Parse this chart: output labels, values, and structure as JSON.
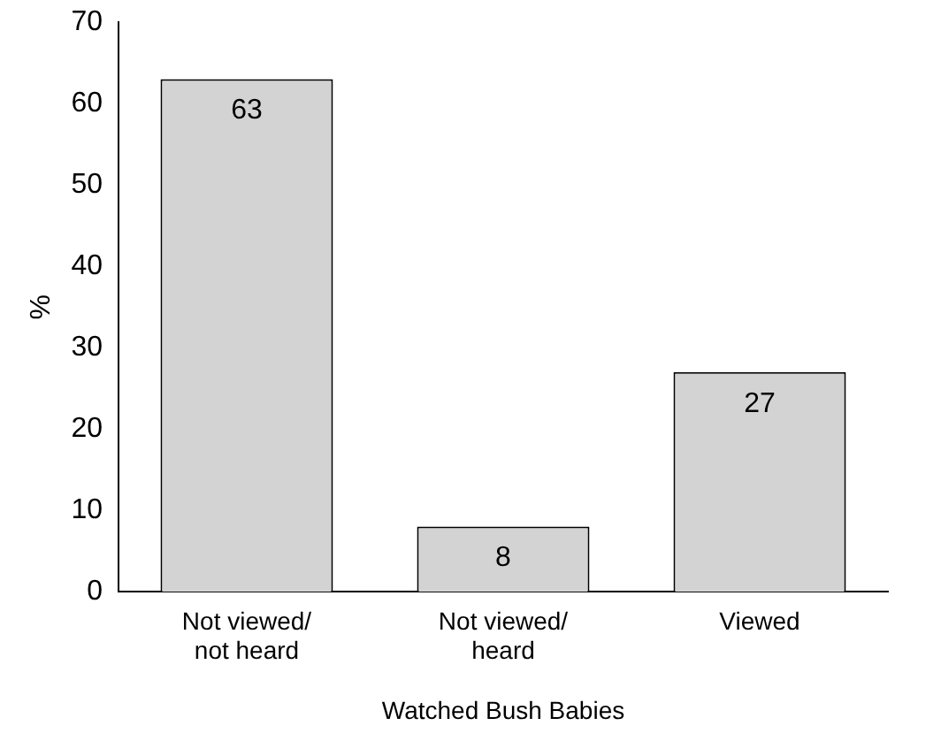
{
  "chart_data": {
    "type": "bar",
    "xlabel": "Watched Bush Babies",
    "ylabel": "%",
    "categories": [
      "Not viewed/not heard",
      "Not viewed/heard",
      "Viewed"
    ],
    "values": [
      63,
      8,
      27
    ],
    "color": "#d3d3d3",
    "ylim": [
      0,
      70
    ],
    "yticks": [
      0,
      10,
      20,
      30,
      40,
      50,
      60,
      70
    ],
    "grid": false,
    "data_labels": true,
    "legend": false
  }
}
